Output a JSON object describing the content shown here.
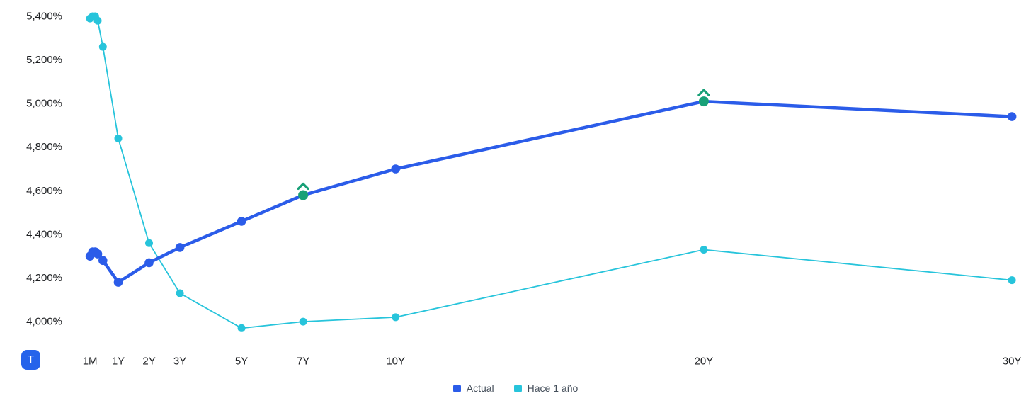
{
  "toolbar": {
    "table_toggle_label": "T"
  },
  "legend": {
    "items": [
      {
        "label": "Actual",
        "color": "#2b5ce9"
      },
      {
        "label": "Hace 1 año",
        "color": "#27c4db"
      }
    ]
  },
  "chart_data": {
    "type": "line",
    "title": "",
    "xlabel": "",
    "ylabel": "",
    "grid": false,
    "legend_position": "bottom-center",
    "y_ticks": [
      {
        "label": "5,400%",
        "value": 5.4
      },
      {
        "label": "5,200%",
        "value": 5.2
      },
      {
        "label": "5,000%",
        "value": 5.0
      },
      {
        "label": "4,800%",
        "value": 4.8
      },
      {
        "label": "4,600%",
        "value": 4.6
      },
      {
        "label": "4,400%",
        "value": 4.4
      },
      {
        "label": "4,200%",
        "value": 4.2
      },
      {
        "label": "4,000%",
        "value": 4.0
      }
    ],
    "ylim": [
      4.0,
      5.4
    ],
    "x_ticks": [
      {
        "label": "1M",
        "years": 0.083
      },
      {
        "label": "1Y",
        "years": 1
      },
      {
        "label": "2Y",
        "years": 2
      },
      {
        "label": "3Y",
        "years": 3
      },
      {
        "label": "5Y",
        "years": 5
      },
      {
        "label": "7Y",
        "years": 7
      },
      {
        "label": "10Y",
        "years": 10
      },
      {
        "label": "20Y",
        "years": 20
      },
      {
        "label": "30Y",
        "years": 30
      }
    ],
    "marker_color": "#18a077",
    "series": [
      {
        "name": "Hace 1 año",
        "color": "#27c4db",
        "line_width": 1.8,
        "point_radius": 5.5,
        "points": [
          {
            "label": "1M",
            "years": 0.083,
            "value": 5.39
          },
          {
            "label": "2M",
            "years": 0.167,
            "value": 5.4
          },
          {
            "label": "3M",
            "years": 0.25,
            "value": 5.4
          },
          {
            "label": "4M",
            "years": 0.333,
            "value": 5.38
          },
          {
            "label": "6M",
            "years": 0.5,
            "value": 5.26
          },
          {
            "label": "1Y",
            "years": 1,
            "value": 4.84
          },
          {
            "label": "2Y",
            "years": 2,
            "value": 4.36
          },
          {
            "label": "3Y",
            "years": 3,
            "value": 4.13
          },
          {
            "label": "5Y",
            "years": 5,
            "value": 3.97
          },
          {
            "label": "7Y",
            "years": 7,
            "value": 4.0
          },
          {
            "label": "10Y",
            "years": 10,
            "value": 4.02
          },
          {
            "label": "20Y",
            "years": 20,
            "value": 4.33
          },
          {
            "label": "30Y",
            "years": 30,
            "value": 4.19
          }
        ]
      },
      {
        "name": "Actual",
        "color": "#2b5ce9",
        "line_width": 4.5,
        "point_radius": 6.3,
        "points": [
          {
            "label": "1M",
            "years": 0.083,
            "value": 4.3
          },
          {
            "label": "2M",
            "years": 0.167,
            "value": 4.32
          },
          {
            "label": "3M",
            "years": 0.25,
            "value": 4.32
          },
          {
            "label": "4M",
            "years": 0.333,
            "value": 4.31
          },
          {
            "label": "6M",
            "years": 0.5,
            "value": 4.28
          },
          {
            "label": "1Y",
            "years": 1,
            "value": 4.18
          },
          {
            "label": "2Y",
            "years": 2,
            "value": 4.27
          },
          {
            "label": "3Y",
            "years": 3,
            "value": 4.34
          },
          {
            "label": "5Y",
            "years": 5,
            "value": 4.46
          },
          {
            "label": "7Y",
            "years": 7,
            "value": 4.58,
            "marker": "up"
          },
          {
            "label": "10Y",
            "years": 10,
            "value": 4.7
          },
          {
            "label": "20Y",
            "years": 20,
            "value": 5.01,
            "marker": "up"
          },
          {
            "label": "30Y",
            "years": 30,
            "value": 4.94
          }
        ]
      }
    ]
  }
}
